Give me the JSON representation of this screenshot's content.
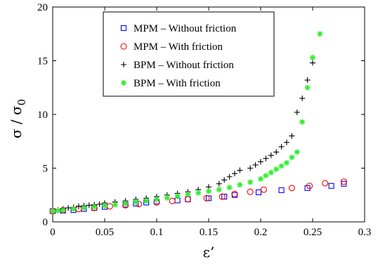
{
  "chart_data": {
    "type": "scatter",
    "title": "",
    "xlabel": "ε’",
    "ylabel": "σ / σ",
    "ylabel_sub": "0",
    "xlim": [
      0,
      0.3
    ],
    "ylim": [
      0,
      20
    ],
    "x_ticks": [
      0,
      0.05,
      0.1,
      0.15,
      0.2,
      0.25,
      0.3
    ],
    "x_tick_labels": [
      "0",
      "0.05",
      "0.1",
      "0.15",
      "0.2",
      "0.25",
      "0.3"
    ],
    "y_ticks": [
      0,
      5,
      10,
      15,
      20
    ],
    "y_tick_labels": [
      "0",
      "5",
      "10",
      "15",
      "20"
    ],
    "grid": false,
    "legend_position": "top-center",
    "series": [
      {
        "name": "MPM – Without friction",
        "marker": "square",
        "color": "#0000ff",
        "points": [
          [
            0,
            1.0
          ],
          [
            0.01,
            1.05
          ],
          [
            0.02,
            1.1
          ],
          [
            0.03,
            1.2
          ],
          [
            0.04,
            1.3
          ],
          [
            0.05,
            1.4
          ],
          [
            0.07,
            1.6
          ],
          [
            0.08,
            1.7
          ],
          [
            0.09,
            1.8
          ],
          [
            0.1,
            1.9
          ],
          [
            0.12,
            2.0
          ],
          [
            0.13,
            2.1
          ],
          [
            0.15,
            2.2
          ],
          [
            0.165,
            2.35
          ],
          [
            0.175,
            2.5
          ],
          [
            0.198,
            2.75
          ],
          [
            0.22,
            2.95
          ],
          [
            0.245,
            3.15
          ],
          [
            0.268,
            3.35
          ],
          [
            0.28,
            3.55
          ]
        ]
      },
      {
        "name": "MPM – With friction",
        "marker": "circle",
        "color": "#ff0000",
        "points": [
          [
            0,
            1.0
          ],
          [
            0.01,
            1.1
          ],
          [
            0.025,
            1.2
          ],
          [
            0.04,
            1.3
          ],
          [
            0.055,
            1.45
          ],
          [
            0.07,
            1.55
          ],
          [
            0.083,
            1.65
          ],
          [
            0.1,
            1.8
          ],
          [
            0.115,
            1.95
          ],
          [
            0.13,
            2.1
          ],
          [
            0.148,
            2.2
          ],
          [
            0.163,
            2.35
          ],
          [
            0.175,
            2.6
          ],
          [
            0.19,
            2.8
          ],
          [
            0.203,
            3.0
          ],
          [
            0.23,
            3.15
          ],
          [
            0.247,
            3.35
          ],
          [
            0.262,
            3.6
          ],
          [
            0.28,
            3.75
          ]
        ]
      },
      {
        "name": "BPM – Without friction",
        "marker": "plus",
        "color": "#000000",
        "points": [
          [
            0,
            1.0
          ],
          [
            0.005,
            1.1
          ],
          [
            0.01,
            1.2
          ],
          [
            0.015,
            1.3
          ],
          [
            0.02,
            1.35
          ],
          [
            0.025,
            1.45
          ],
          [
            0.03,
            1.5
          ],
          [
            0.035,
            1.55
          ],
          [
            0.04,
            1.6
          ],
          [
            0.045,
            1.65
          ],
          [
            0.05,
            1.75
          ],
          [
            0.06,
            1.85
          ],
          [
            0.07,
            1.95
          ],
          [
            0.08,
            2.1
          ],
          [
            0.09,
            2.2
          ],
          [
            0.1,
            2.35
          ],
          [
            0.11,
            2.5
          ],
          [
            0.12,
            2.65
          ],
          [
            0.13,
            2.8
          ],
          [
            0.14,
            3.0
          ],
          [
            0.15,
            3.25
          ],
          [
            0.16,
            3.55
          ],
          [
            0.165,
            3.9
          ],
          [
            0.17,
            4.2
          ],
          [
            0.175,
            4.5
          ],
          [
            0.18,
            4.8
          ],
          [
            0.19,
            5.0
          ],
          [
            0.195,
            5.3
          ],
          [
            0.2,
            5.6
          ],
          [
            0.205,
            5.9
          ],
          [
            0.21,
            6.2
          ],
          [
            0.215,
            6.5
          ],
          [
            0.22,
            7.0
          ],
          [
            0.225,
            7.4
          ],
          [
            0.23,
            8.0
          ],
          [
            0.235,
            10.2
          ],
          [
            0.24,
            11.5
          ],
          [
            0.245,
            13.2
          ],
          [
            0.25,
            14.8
          ]
        ]
      },
      {
        "name": "BPM – With friction",
        "marker": "asterisk",
        "color": "#33ee33",
        "points": [
          [
            0,
            1.0
          ],
          [
            0.005,
            1.05
          ],
          [
            0.01,
            1.1
          ],
          [
            0.02,
            1.2
          ],
          [
            0.03,
            1.3
          ],
          [
            0.04,
            1.4
          ],
          [
            0.05,
            1.5
          ],
          [
            0.06,
            1.6
          ],
          [
            0.07,
            1.7
          ],
          [
            0.08,
            1.85
          ],
          [
            0.09,
            1.95
          ],
          [
            0.1,
            2.1
          ],
          [
            0.11,
            2.25
          ],
          [
            0.12,
            2.4
          ],
          [
            0.13,
            2.55
          ],
          [
            0.14,
            2.7
          ],
          [
            0.15,
            2.85
          ],
          [
            0.16,
            3.0
          ],
          [
            0.17,
            3.2
          ],
          [
            0.18,
            3.45
          ],
          [
            0.19,
            3.7
          ],
          [
            0.2,
            4.0
          ],
          [
            0.205,
            4.3
          ],
          [
            0.21,
            4.6
          ],
          [
            0.215,
            4.9
          ],
          [
            0.22,
            5.2
          ],
          [
            0.225,
            5.5
          ],
          [
            0.23,
            6.0
          ],
          [
            0.235,
            6.5
          ],
          [
            0.24,
            9.3
          ],
          [
            0.245,
            12.5
          ],
          [
            0.25,
            15.3
          ],
          [
            0.257,
            17.5
          ]
        ]
      }
    ]
  }
}
